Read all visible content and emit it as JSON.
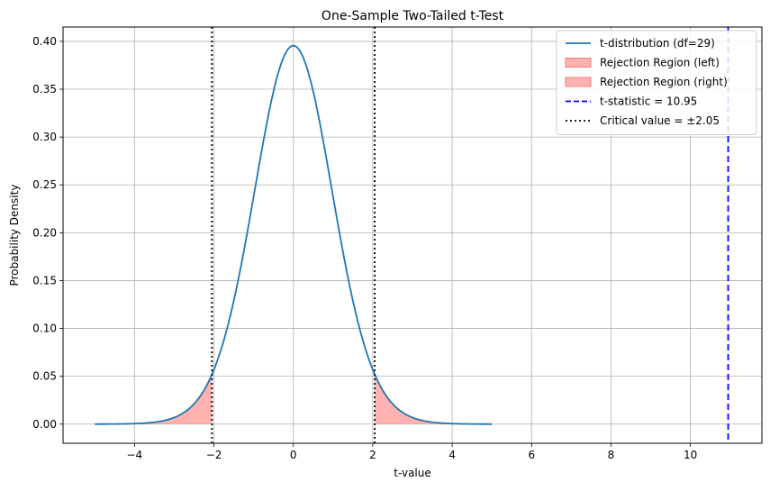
{
  "chart_data": {
    "type": "line",
    "title": "One-Sample Two-Tailed t-Test",
    "xlabel": "t-value",
    "ylabel": "Probability Density",
    "xlim": [
      -5.8,
      11.8
    ],
    "ylim": [
      -0.02,
      0.415
    ],
    "xticks": [
      -4,
      -2,
      0,
      2,
      4,
      6,
      8,
      10
    ],
    "xtick_labels": [
      "−4",
      "−2",
      "0",
      "2",
      "4",
      "6",
      "8",
      "10"
    ],
    "yticks": [
      0.0,
      0.05,
      0.1,
      0.15,
      0.2,
      0.25,
      0.3,
      0.35,
      0.4
    ],
    "ytick_labels": [
      "0.00",
      "0.05",
      "0.10",
      "0.15",
      "0.20",
      "0.25",
      "0.30",
      "0.35",
      "0.40"
    ],
    "grid": true,
    "legend_position": "top-right",
    "df": 29,
    "critical_value": 2.05,
    "t_statistic": 10.95,
    "series": [
      {
        "name": "t-distribution (df=29)",
        "kind": "line",
        "color": "#1f77b4",
        "x": [
          -5.0,
          -4.5,
          -4.0,
          -3.5,
          -3.0,
          -2.75,
          -2.5,
          -2.25,
          -2.05,
          -2.0,
          -1.75,
          -1.5,
          -1.25,
          -1.0,
          -0.75,
          -0.5,
          -0.25,
          0.0,
          0.25,
          0.5,
          0.75,
          1.0,
          1.25,
          1.5,
          1.75,
          2.0,
          2.05,
          2.25,
          2.5,
          2.75,
          3.0,
          3.5,
          4.0,
          4.5,
          5.0
        ],
        "y": [
          0.0001,
          0.0003,
          0.0009,
          0.0025,
          0.0073,
          0.0124,
          0.0204,
          0.0325,
          0.0473,
          0.0516,
          0.0866,
          0.129,
          0.1797,
          0.239,
          0.2993,
          0.3495,
          0.3826,
          0.394,
          0.3826,
          0.3495,
          0.2993,
          0.239,
          0.1797,
          0.129,
          0.0866,
          0.0516,
          0.0473,
          0.0325,
          0.0204,
          0.0124,
          0.0073,
          0.0025,
          0.0009,
          0.0003,
          0.0001
        ]
      },
      {
        "name": "Rejection Region (left)",
        "kind": "fill",
        "color": "#ff9896",
        "x_range": [
          -5.0,
          -2.05
        ]
      },
      {
        "name": "Rejection Region (right)",
        "kind": "fill",
        "color": "#ff9896",
        "x_range": [
          2.05,
          5.0
        ]
      },
      {
        "name": "t-statistic = 10.95",
        "kind": "vline",
        "color": "#0000ff",
        "style": "dashed",
        "x": 10.95
      },
      {
        "name": "Critical value = ±2.05",
        "kind": "vline",
        "color": "#000000",
        "style": "dotted",
        "x": [
          -2.05,
          2.05
        ]
      }
    ]
  }
}
